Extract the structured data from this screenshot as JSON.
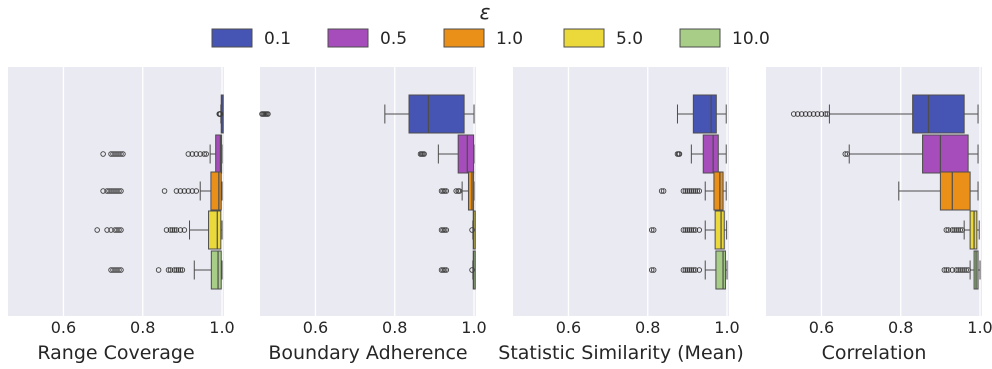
{
  "legend": {
    "title": "ε",
    "entries": [
      {
        "label": "0.1",
        "color": "#4654b4"
      },
      {
        "label": "0.5",
        "color": "#a64dbb"
      },
      {
        "label": "1.0",
        "color": "#ea9019"
      },
      {
        "label": "5.0",
        "color": "#ebd83a"
      },
      {
        "label": "10.0",
        "color": "#a7cd87"
      }
    ]
  },
  "colors": {
    "panel_bg": "#eaeaf2",
    "grid": "#ffffff",
    "box_edge": "#4d4d4d",
    "outlier": "#3d3d3d"
  },
  "chart_data": [
    {
      "type": "box",
      "xlabel": "Range Coverage",
      "xlim": [
        0.46,
        1.005
      ],
      "xticks": [
        0.6,
        0.8,
        1.0
      ],
      "xtick_labels": [
        "0.6",
        "0.8",
        "1.0"
      ],
      "categories": [
        "0.1",
        "0.5",
        "1.0",
        "5.0",
        "10.0"
      ],
      "boxes": [
        {
          "group": "0.1",
          "q1": 0.998,
          "median": 0.999,
          "q3": 1.0,
          "whisker_low": 0.997,
          "whisker_high": 1.0,
          "outliers": [
            0.993,
            0.994,
            0.995,
            0.996
          ]
        },
        {
          "group": "0.5",
          "q1": 0.984,
          "median": 0.996,
          "q3": 0.999,
          "whisker_low": 0.97,
          "whisker_high": 1.0,
          "outliers": [
            0.7,
            0.72,
            0.725,
            0.73,
            0.735,
            0.74,
            0.745,
            0.75,
            0.915,
            0.925,
            0.935,
            0.945,
            0.955,
            0.96
          ]
        },
        {
          "group": "1.0",
          "q1": 0.972,
          "median": 0.992,
          "q3": 0.998,
          "whisker_low": 0.945,
          "whisker_high": 1.0,
          "outliers": [
            0.7,
            0.71,
            0.715,
            0.72,
            0.725,
            0.73,
            0.735,
            0.74,
            0.745,
            0.855,
            0.885,
            0.895,
            0.905,
            0.915,
            0.925,
            0.935
          ]
        },
        {
          "group": "5.0",
          "q1": 0.966,
          "median": 0.988,
          "q3": 0.997,
          "whisker_low": 0.918,
          "whisker_high": 1.0,
          "outliers": [
            0.685,
            0.71,
            0.72,
            0.73,
            0.735,
            0.74,
            0.745,
            0.86,
            0.87,
            0.875,
            0.88,
            0.885,
            0.895,
            0.905
          ]
        },
        {
          "group": "10.0",
          "q1": 0.973,
          "median": 0.99,
          "q3": 0.998,
          "whisker_low": 0.93,
          "whisker_high": 1.0,
          "outliers": [
            0.72,
            0.725,
            0.73,
            0.735,
            0.74,
            0.745,
            0.84,
            0.865,
            0.87,
            0.88,
            0.885,
            0.89,
            0.895,
            0.9
          ]
        }
      ]
    },
    {
      "type": "box",
      "xlabel": "Boundary Adherence",
      "xlim": [
        0.46,
        1.005
      ],
      "xticks": [
        0.6,
        0.8,
        1.0
      ],
      "xtick_labels": [
        "0.6",
        "0.8",
        "1.0"
      ],
      "categories": [
        "0.1",
        "0.5",
        "1.0",
        "5.0",
        "10.0"
      ],
      "boxes": [
        {
          "group": "0.1",
          "q1": 0.836,
          "median": 0.885,
          "q3": 0.975,
          "whisker_low": 0.775,
          "whisker_high": 1.0,
          "outliers": [
            0.465,
            0.468,
            0.471,
            0.474,
            0.477,
            0.48
          ]
        },
        {
          "group": "0.5",
          "q1": 0.96,
          "median": 0.983,
          "q3": 0.999,
          "whisker_low": 0.91,
          "whisker_high": 1.0,
          "outliers": [
            0.865,
            0.868,
            0.871,
            0.874
          ]
        },
        {
          "group": "1.0",
          "q1": 0.986,
          "median": 0.995,
          "q3": 0.999,
          "whisker_low": 0.97,
          "whisker_high": 1.0,
          "outliers": [
            0.918,
            0.922,
            0.926,
            0.93,
            0.955,
            0.96,
            0.963
          ]
        },
        {
          "group": "5.0",
          "q1": 0.998,
          "median": 0.999,
          "q3": 1.0,
          "whisker_low": 0.997,
          "whisker_high": 1.0,
          "outliers": [
            0.918,
            0.922,
            0.926,
            0.93,
            0.995
          ]
        },
        {
          "group": "10.0",
          "q1": 0.998,
          "median": 0.999,
          "q3": 1.0,
          "whisker_low": 0.997,
          "whisker_high": 1.0,
          "outliers": [
            0.918,
            0.922,
            0.926,
            0.93,
            0.995
          ]
        }
      ]
    },
    {
      "type": "box",
      "xlabel": "Statistic Similarity (Mean)",
      "xlim": [
        0.46,
        1.005
      ],
      "xticks": [
        0.6,
        0.8,
        1.0
      ],
      "xtick_labels": [
        "0.6",
        "0.8",
        "1.0"
      ],
      "categories": [
        "0.1",
        "0.5",
        "1.0",
        "5.0",
        "10.0"
      ],
      "boxes": [
        {
          "group": "0.1",
          "q1": 0.915,
          "median": 0.96,
          "q3": 0.973,
          "whisker_low": 0.875,
          "whisker_high": 0.998,
          "outliers": []
        },
        {
          "group": "0.5",
          "q1": 0.94,
          "median": 0.965,
          "q3": 0.978,
          "whisker_low": 0.91,
          "whisker_high": 0.998,
          "outliers": [
            0.875,
            0.878,
            0.88
          ]
        },
        {
          "group": "1.0",
          "q1": 0.967,
          "median": 0.982,
          "q3": 0.99,
          "whisker_low": 0.945,
          "whisker_high": 0.998,
          "outliers": [
            0.835,
            0.84,
            0.89,
            0.895,
            0.9,
            0.905,
            0.91,
            0.915,
            0.92,
            0.925,
            0.93
          ]
        },
        {
          "group": "5.0",
          "q1": 0.97,
          "median": 0.985,
          "q3": 0.993,
          "whisker_low": 0.945,
          "whisker_high": 0.999,
          "outliers": [
            0.81,
            0.815,
            0.89,
            0.895,
            0.9,
            0.905,
            0.91,
            0.915,
            0.92,
            0.93
          ]
        },
        {
          "group": "10.0",
          "q1": 0.972,
          "median": 0.99,
          "q3": 0.996,
          "whisker_low": 0.945,
          "whisker_high": 1.0,
          "outliers": [
            0.81,
            0.815,
            0.89,
            0.895,
            0.9,
            0.905,
            0.91,
            0.915,
            0.92,
            0.93
          ]
        }
      ]
    },
    {
      "type": "box",
      "xlabel": "Correlation",
      "xlim": [
        0.46,
        1.005
      ],
      "xticks": [
        0.6,
        0.8,
        1.0
      ],
      "xtick_labels": [
        "0.6",
        "0.8",
        "1.0"
      ],
      "categories": [
        "0.1",
        "0.5",
        "1.0",
        "5.0",
        "10.0"
      ],
      "boxes": [
        {
          "group": "0.1",
          "q1": 0.83,
          "median": 0.87,
          "q3": 0.96,
          "whisker_low": 0.62,
          "whisker_high": 0.995,
          "outliers": [
            0.53,
            0.54,
            0.55,
            0.56,
            0.57,
            0.58,
            0.59,
            0.6,
            0.61,
            0.615
          ]
        },
        {
          "group": "0.5",
          "q1": 0.855,
          "median": 0.9,
          "q3": 0.97,
          "whisker_low": 0.67,
          "whisker_high": 0.995,
          "outliers": [
            0.66,
            0.665
          ]
        },
        {
          "group": "1.0",
          "q1": 0.9,
          "median": 0.93,
          "q3": 0.975,
          "whisker_low": 0.795,
          "whisker_high": 0.995,
          "outliers": []
        },
        {
          "group": "5.0",
          "q1": 0.975,
          "median": 0.985,
          "q3": 0.992,
          "whisker_low": 0.96,
          "whisker_high": 0.998,
          "outliers": [
            0.915,
            0.92,
            0.93,
            0.935,
            0.94,
            0.945,
            0.95,
            0.955
          ]
        },
        {
          "group": "10.0",
          "q1": 0.985,
          "median": 0.99,
          "q3": 0.995,
          "whisker_low": 0.975,
          "whisker_high": 1.0,
          "outliers": [
            0.91,
            0.915,
            0.92,
            0.93,
            0.94,
            0.945,
            0.95,
            0.955,
            0.96,
            0.965,
            0.97
          ]
        }
      ]
    }
  ]
}
